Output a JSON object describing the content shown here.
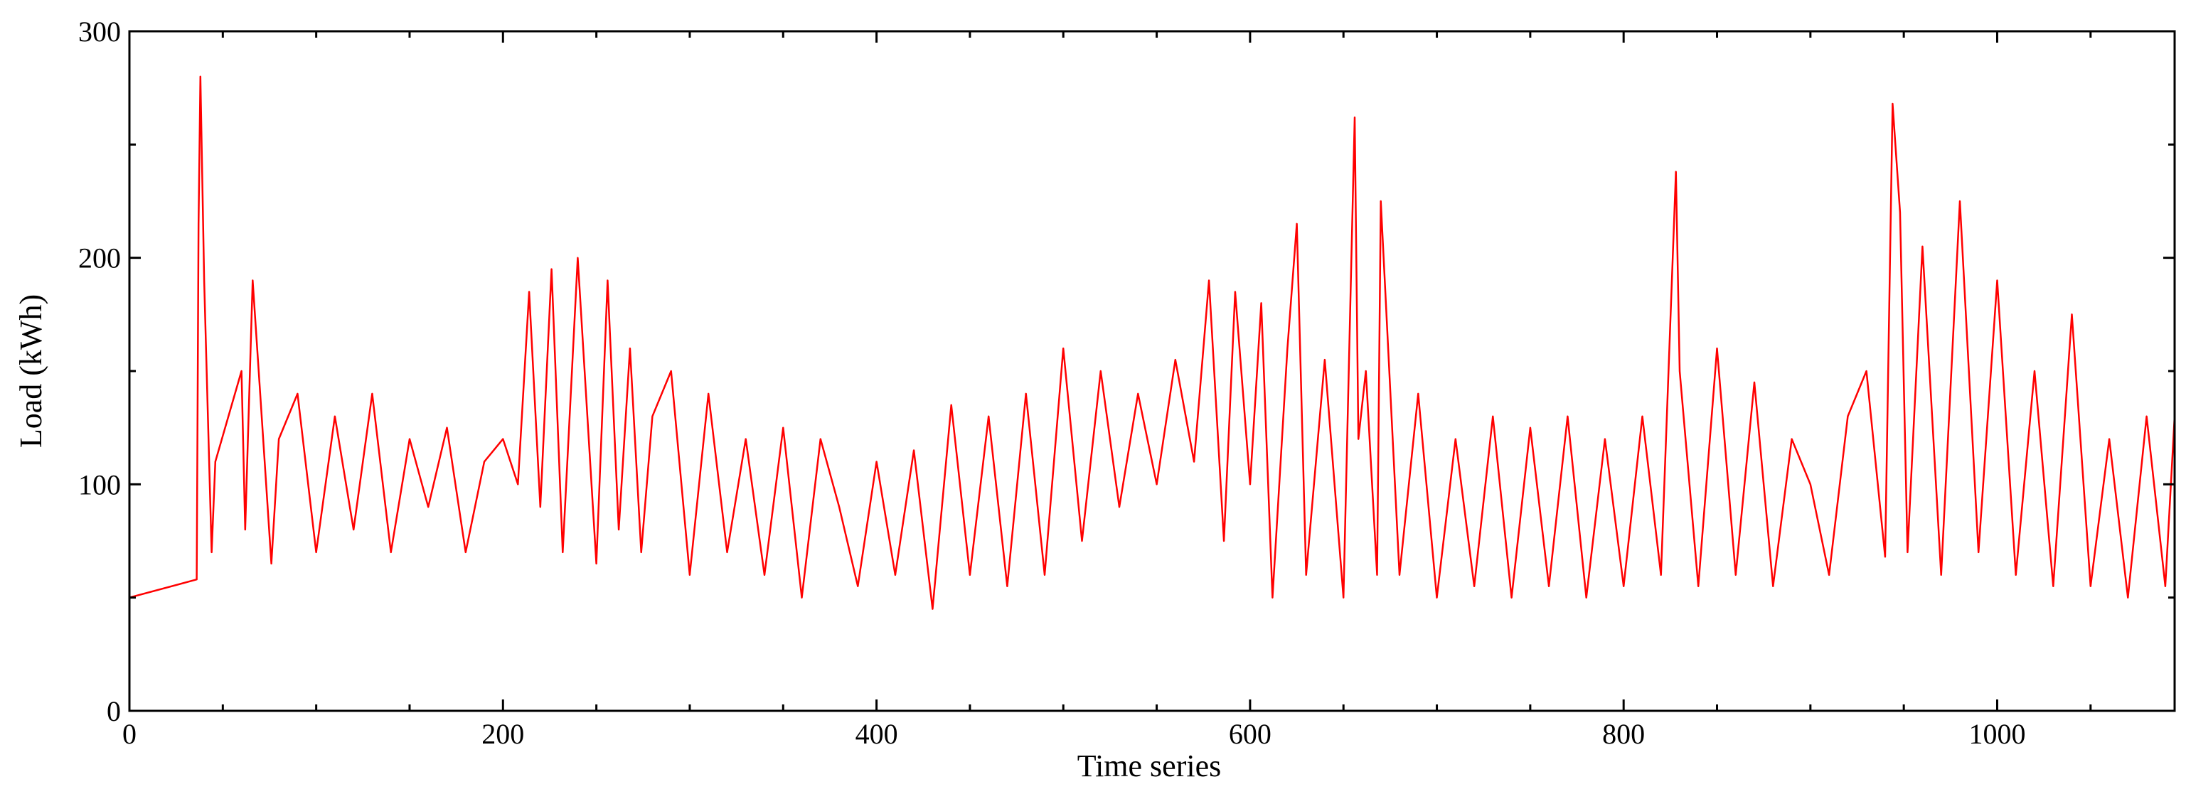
{
  "chart_data": {
    "type": "line",
    "title": "",
    "xlabel": "Time series",
    "ylabel": "Load (kWh)",
    "xlim": [
      0,
      1095
    ],
    "ylim": [
      0,
      300
    ],
    "x_major_ticks": [
      0,
      200,
      400,
      600,
      800,
      1000
    ],
    "x_tick_labels": [
      "0",
      "200",
      "400",
      "600",
      "800",
      "1000"
    ],
    "y_major_ticks": [
      0,
      100,
      200,
      300
    ],
    "y_tick_labels": [
      "0",
      "100",
      "200",
      "300"
    ],
    "grid": false,
    "legend": "none",
    "series": [
      {
        "color": "#ff0000",
        "x": [
          0,
          36,
          37,
          38,
          40,
          44,
          46,
          60,
          62,
          66,
          70,
          76,
          80,
          90,
          100,
          110,
          120,
          130,
          140,
          150,
          160,
          170,
          180,
          190,
          200,
          208,
          214,
          220,
          226,
          232,
          240,
          250,
          256,
          262,
          268,
          274,
          280,
          290,
          300,
          310,
          320,
          330,
          340,
          350,
          360,
          370,
          380,
          390,
          400,
          410,
          420,
          430,
          440,
          450,
          460,
          470,
          480,
          490,
          500,
          510,
          520,
          530,
          540,
          550,
          560,
          570,
          578,
          586,
          592,
          600,
          606,
          612,
          620,
          625,
          630,
          640,
          650,
          656,
          658,
          662,
          668,
          670,
          680,
          690,
          700,
          710,
          720,
          730,
          740,
          750,
          760,
          770,
          780,
          790,
          800,
          810,
          820,
          828,
          830,
          840,
          850,
          860,
          870,
          880,
          890,
          900,
          910,
          920,
          930,
          940,
          944,
          948,
          952,
          960,
          970,
          980,
          990,
          1000,
          1010,
          1020,
          1030,
          1040,
          1050,
          1060,
          1070,
          1080,
          1090,
          1095
        ],
        "y": [
          50,
          58,
          215,
          280,
          190,
          70,
          110,
          150,
          80,
          190,
          140,
          65,
          120,
          140,
          70,
          130,
          80,
          140,
          70,
          120,
          90,
          125,
          70,
          110,
          120,
          100,
          185,
          90,
          195,
          70,
          200,
          65,
          190,
          80,
          160,
          70,
          130,
          150,
          60,
          140,
          70,
          120,
          60,
          125,
          50,
          120,
          90,
          55,
          110,
          60,
          115,
          45,
          135,
          60,
          130,
          55,
          140,
          60,
          160,
          75,
          150,
          90,
          140,
          100,
          155,
          110,
          190,
          75,
          185,
          100,
          180,
          50,
          160,
          215,
          60,
          155,
          50,
          262,
          120,
          150,
          60,
          225,
          60,
          140,
          50,
          120,
          55,
          130,
          50,
          125,
          55,
          130,
          50,
          120,
          55,
          130,
          60,
          238,
          150,
          55,
          160,
          60,
          145,
          55,
          120,
          100,
          60,
          130,
          150,
          68,
          268,
          220,
          70,
          205,
          60,
          225,
          70,
          190,
          60,
          150,
          55,
          175,
          55,
          120,
          50,
          130,
          55,
          130
        ]
      }
    ]
  }
}
